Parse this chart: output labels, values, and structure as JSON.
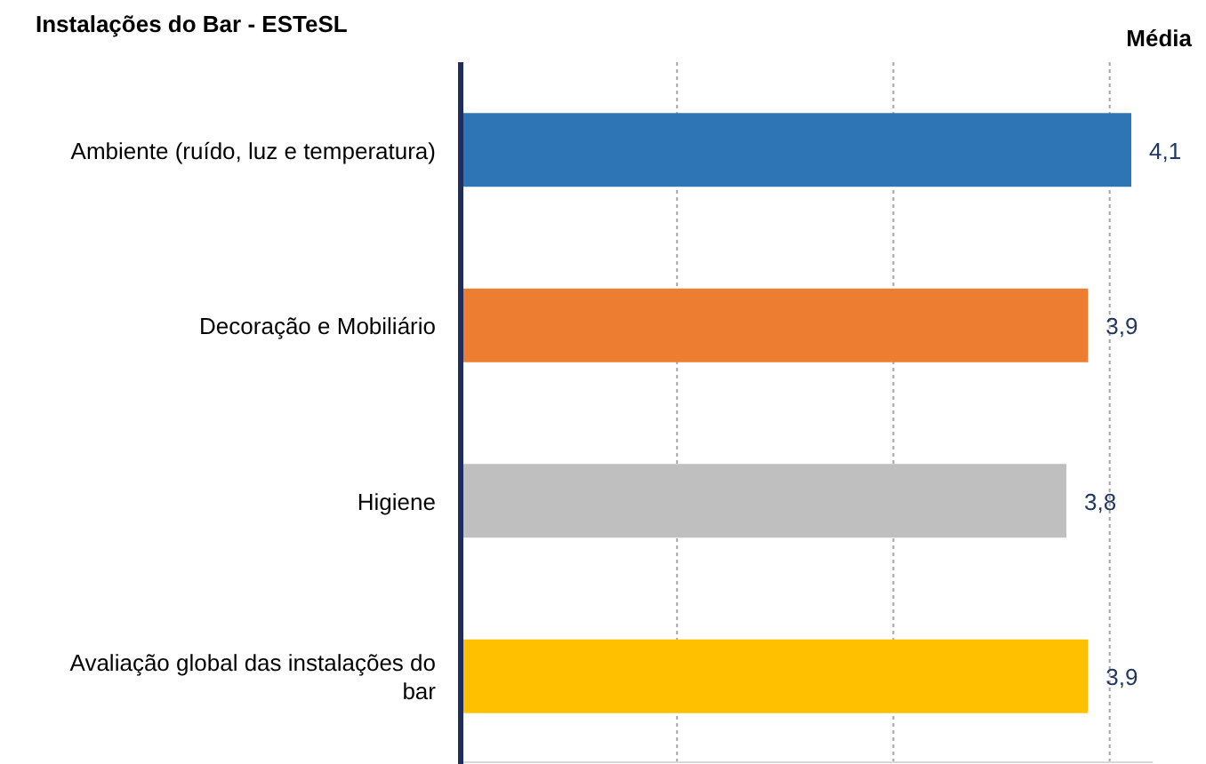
{
  "chart_data": {
    "type": "bar",
    "orientation": "horizontal",
    "title": "Instalações do Bar - ESTeSL",
    "categories": [
      "Ambiente (ruído, luz e temperatura)",
      "Decoração e Mobiliário",
      "Higiene",
      "Avaliação global das instalações do bar"
    ],
    "values": [
      4.1,
      3.9,
      3.8,
      3.9
    ],
    "value_labels": [
      "4,1",
      "3,9",
      "3,8",
      "3,9"
    ],
    "colors": [
      "#2e75b6",
      "#ed7d31",
      "#bfbfbf",
      "#ffc000"
    ],
    "xlim": [
      1,
      4.2
    ],
    "xticks": [
      {
        "value": 2,
        "label": null
      },
      {
        "value": 3,
        "label": null
      },
      {
        "value": 4,
        "label": null
      }
    ],
    "grid": "x",
    "tick_labels": "y",
    "annotations": [
      "Média"
    ]
  }
}
